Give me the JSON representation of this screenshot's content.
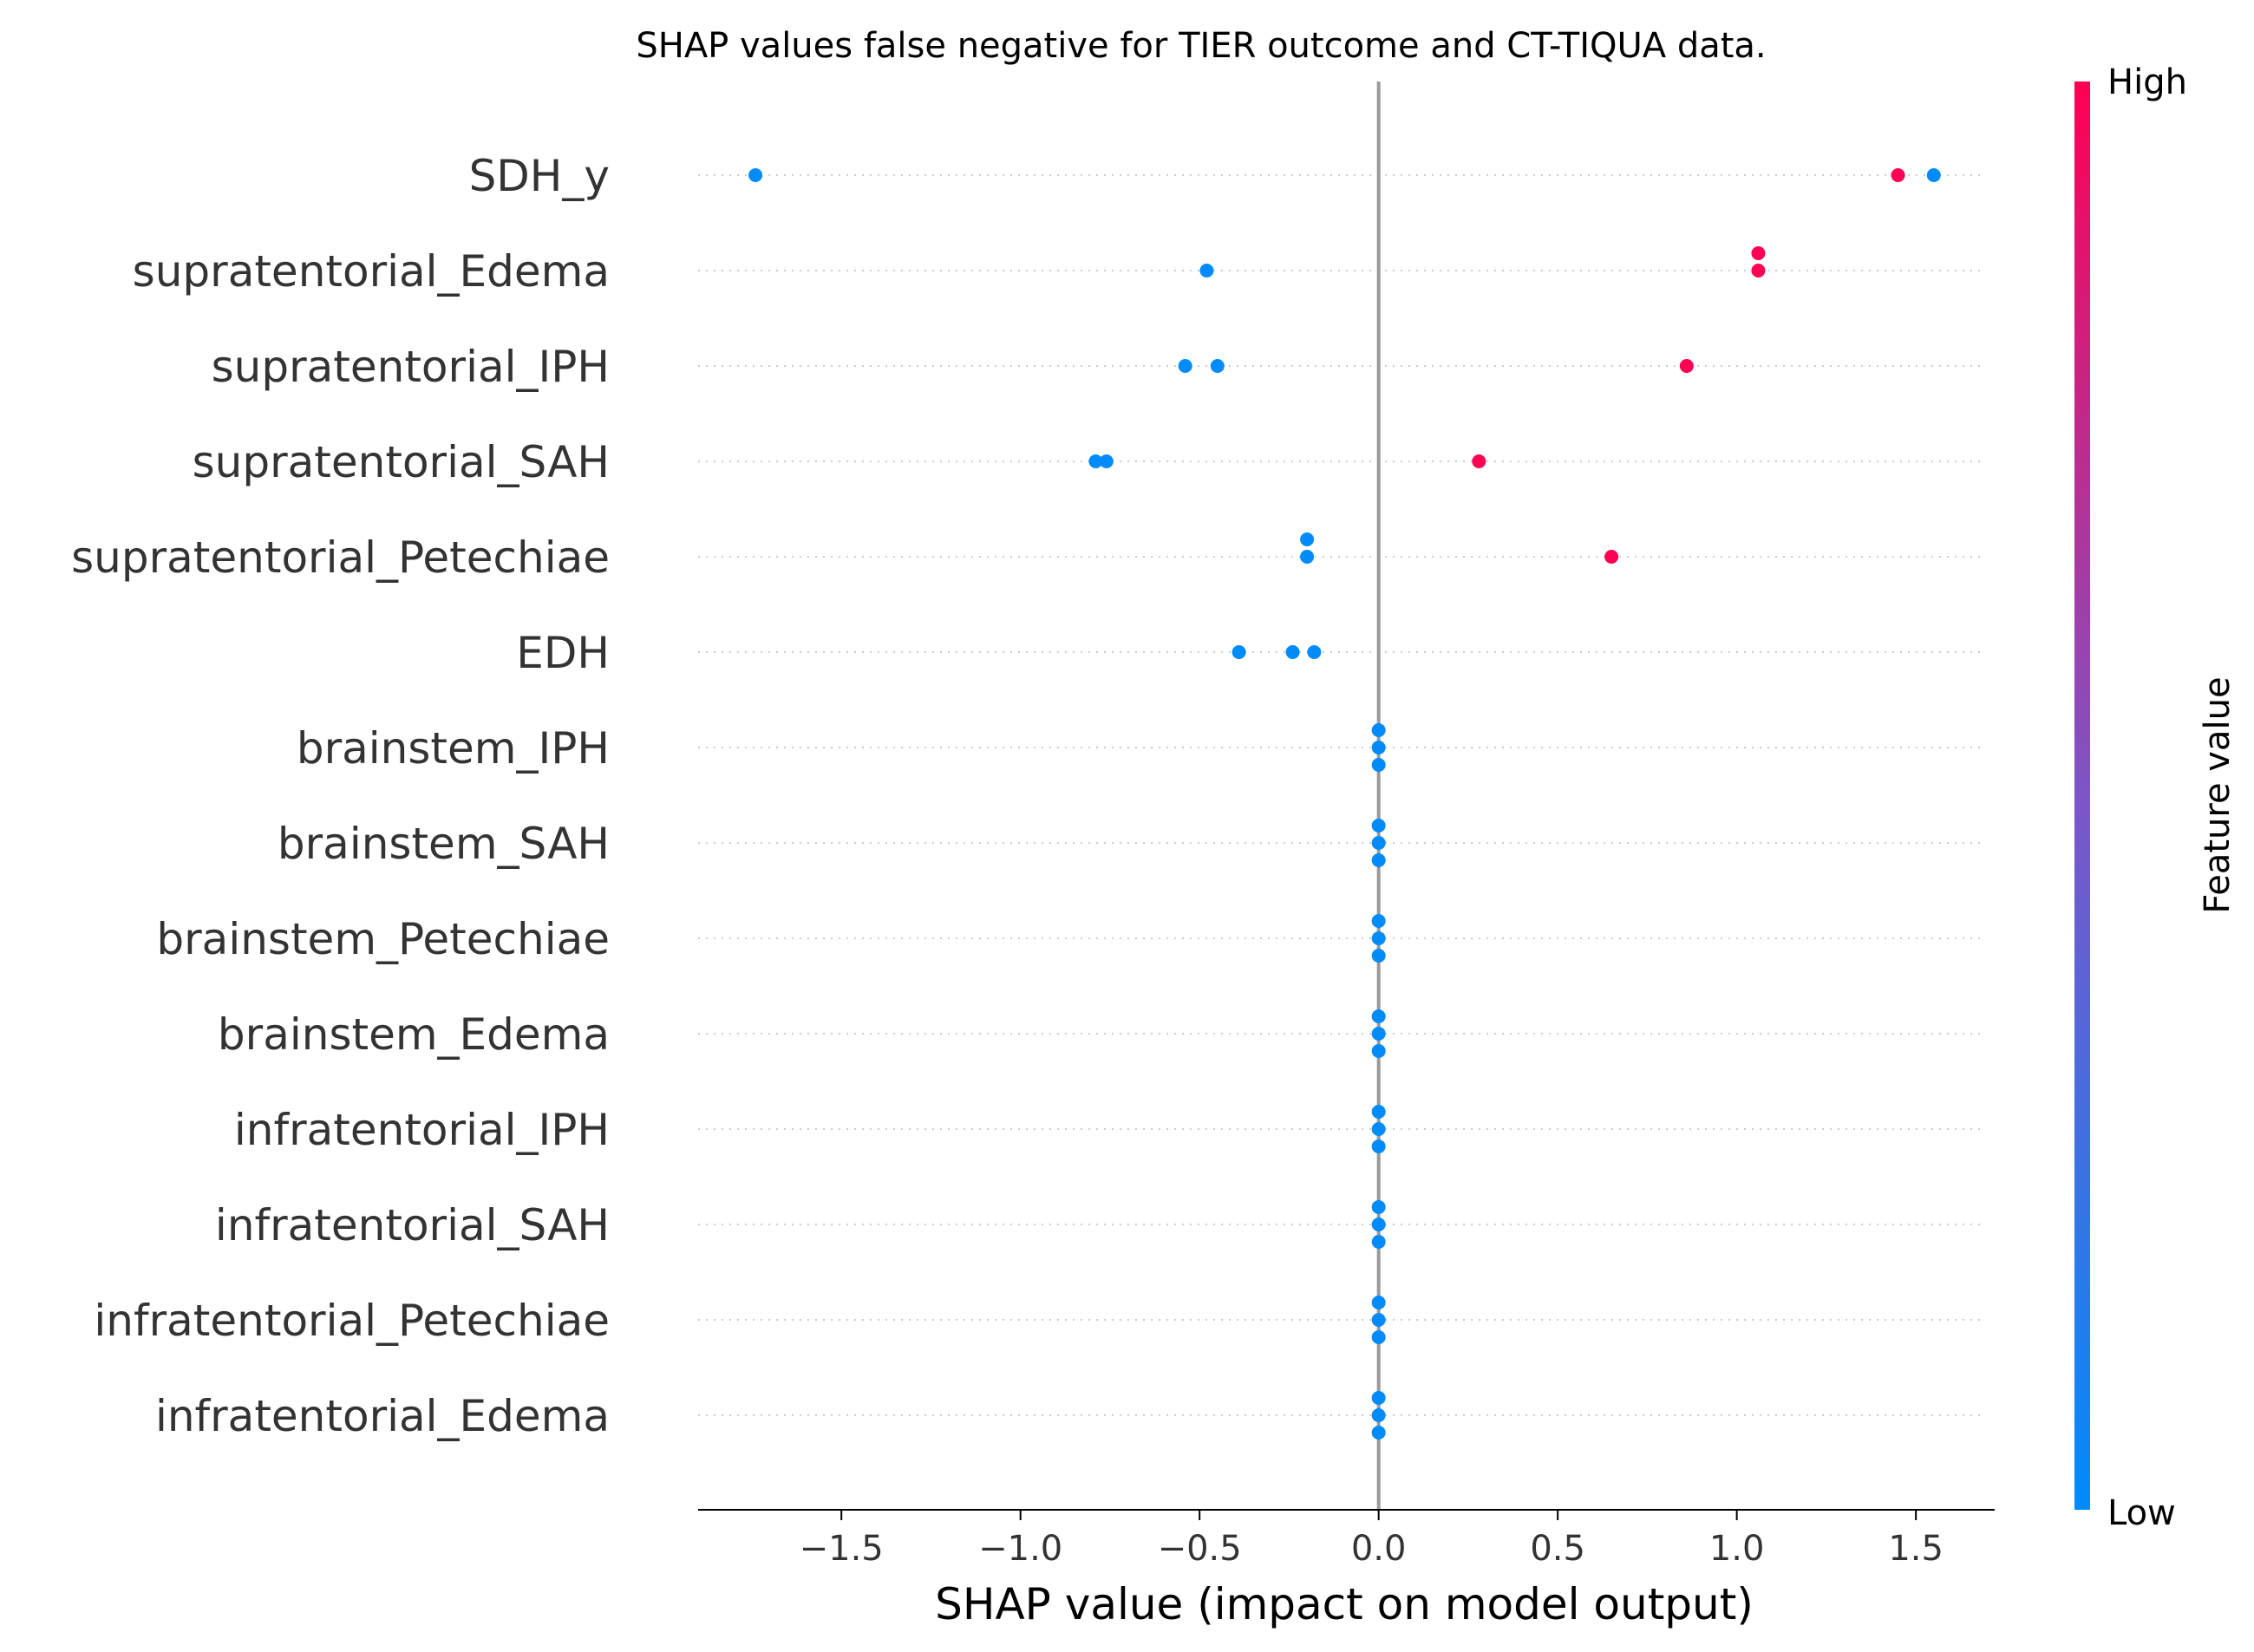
{
  "chart_data": {
    "type": "scatter",
    "title": "SHAP values false negative for TIER outcome and CT-TIQUA data.",
    "xlabel": "SHAP value (impact on model output)",
    "xlim": [
      -1.9,
      1.72
    ],
    "xticks": [
      -1.5,
      -1.0,
      -0.5,
      0.0,
      0.5,
      1.0,
      1.5
    ],
    "xtick_labels": [
      "−1.5",
      "−1.0",
      "−0.5",
      "0.0",
      "0.5",
      "1.0",
      "1.5"
    ],
    "features": [
      {
        "name": "SDH_y",
        "points": [
          {
            "x": -1.74,
            "v": 0.0,
            "off": 0
          },
          {
            "x": 1.45,
            "v": 1.0,
            "off": 0
          },
          {
            "x": 1.55,
            "v": 0.0,
            "off": 0
          }
        ]
      },
      {
        "name": "supratentorial_Edema",
        "points": [
          {
            "x": -0.48,
            "v": 0.0,
            "off": 0
          },
          {
            "x": 1.06,
            "v": 1.0,
            "off": 1
          },
          {
            "x": 1.06,
            "v": 1.0,
            "off": 0
          }
        ]
      },
      {
        "name": "supratentorial_IPH",
        "points": [
          {
            "x": -0.54,
            "v": 0.0,
            "off": 0
          },
          {
            "x": -0.45,
            "v": 0.0,
            "off": 0
          },
          {
            "x": 0.86,
            "v": 1.0,
            "off": 0
          }
        ]
      },
      {
        "name": "supratentorial_SAH",
        "points": [
          {
            "x": -0.79,
            "v": 0.0,
            "off": 0
          },
          {
            "x": -0.76,
            "v": 0.0,
            "off": 0
          },
          {
            "x": 0.28,
            "v": 1.0,
            "off": 0
          }
        ]
      },
      {
        "name": "supratentorial_Petechiae",
        "points": [
          {
            "x": -0.2,
            "v": 0.0,
            "off": 1
          },
          {
            "x": -0.2,
            "v": 0.0,
            "off": 0
          },
          {
            "x": 0.65,
            "v": 1.0,
            "off": 0
          }
        ]
      },
      {
        "name": "EDH",
        "points": [
          {
            "x": -0.39,
            "v": 0.0,
            "off": 0
          },
          {
            "x": -0.24,
            "v": 0.0,
            "off": 0
          },
          {
            "x": -0.18,
            "v": 0.0,
            "off": 0
          }
        ]
      },
      {
        "name": "brainstem_IPH",
        "points": [
          {
            "x": 0.0,
            "v": 0.0,
            "off": 1
          },
          {
            "x": 0.0,
            "v": 0.0,
            "off": 0
          },
          {
            "x": 0.0,
            "v": 0.0,
            "off": -1
          }
        ]
      },
      {
        "name": "brainstem_SAH",
        "points": [
          {
            "x": 0.0,
            "v": 0.0,
            "off": 1
          },
          {
            "x": 0.0,
            "v": 0.0,
            "off": 0
          },
          {
            "x": 0.0,
            "v": 0.0,
            "off": -1
          }
        ]
      },
      {
        "name": "brainstem_Petechiae",
        "points": [
          {
            "x": 0.0,
            "v": 0.0,
            "off": 1
          },
          {
            "x": 0.0,
            "v": 0.0,
            "off": 0
          },
          {
            "x": 0.0,
            "v": 0.0,
            "off": -1
          }
        ]
      },
      {
        "name": "brainstem_Edema",
        "points": [
          {
            "x": 0.0,
            "v": 0.0,
            "off": 1
          },
          {
            "x": 0.0,
            "v": 0.0,
            "off": 0
          },
          {
            "x": 0.0,
            "v": 0.0,
            "off": -1
          }
        ]
      },
      {
        "name": "infratentorial_IPH",
        "points": [
          {
            "x": 0.0,
            "v": 0.0,
            "off": 1
          },
          {
            "x": 0.0,
            "v": 0.0,
            "off": 0
          },
          {
            "x": 0.0,
            "v": 0.0,
            "off": -1
          }
        ]
      },
      {
        "name": "infratentorial_SAH",
        "points": [
          {
            "x": 0.0,
            "v": 0.0,
            "off": 1
          },
          {
            "x": 0.0,
            "v": 0.0,
            "off": 0
          },
          {
            "x": 0.0,
            "v": 0.0,
            "off": -1
          }
        ]
      },
      {
        "name": "infratentorial_Petechiae",
        "points": [
          {
            "x": 0.0,
            "v": 0.0,
            "off": 1
          },
          {
            "x": 0.0,
            "v": 0.0,
            "off": 0
          },
          {
            "x": 0.0,
            "v": 0.0,
            "off": -1
          }
        ]
      },
      {
        "name": "infratentorial_Edema",
        "points": [
          {
            "x": 0.0,
            "v": 0.0,
            "off": 1
          },
          {
            "x": 0.0,
            "v": 0.0,
            "off": 0
          },
          {
            "x": 0.0,
            "v": 0.0,
            "off": -1
          }
        ]
      }
    ],
    "colorbar": {
      "label": "Feature value",
      "high_label": "High",
      "low_label": "Low",
      "low_color": "#008bfb",
      "mid_color": "#7d55c7",
      "high_color": "#ff0052"
    },
    "zero_line_color": "#999999",
    "grid": "horizontal dotted per feature"
  }
}
